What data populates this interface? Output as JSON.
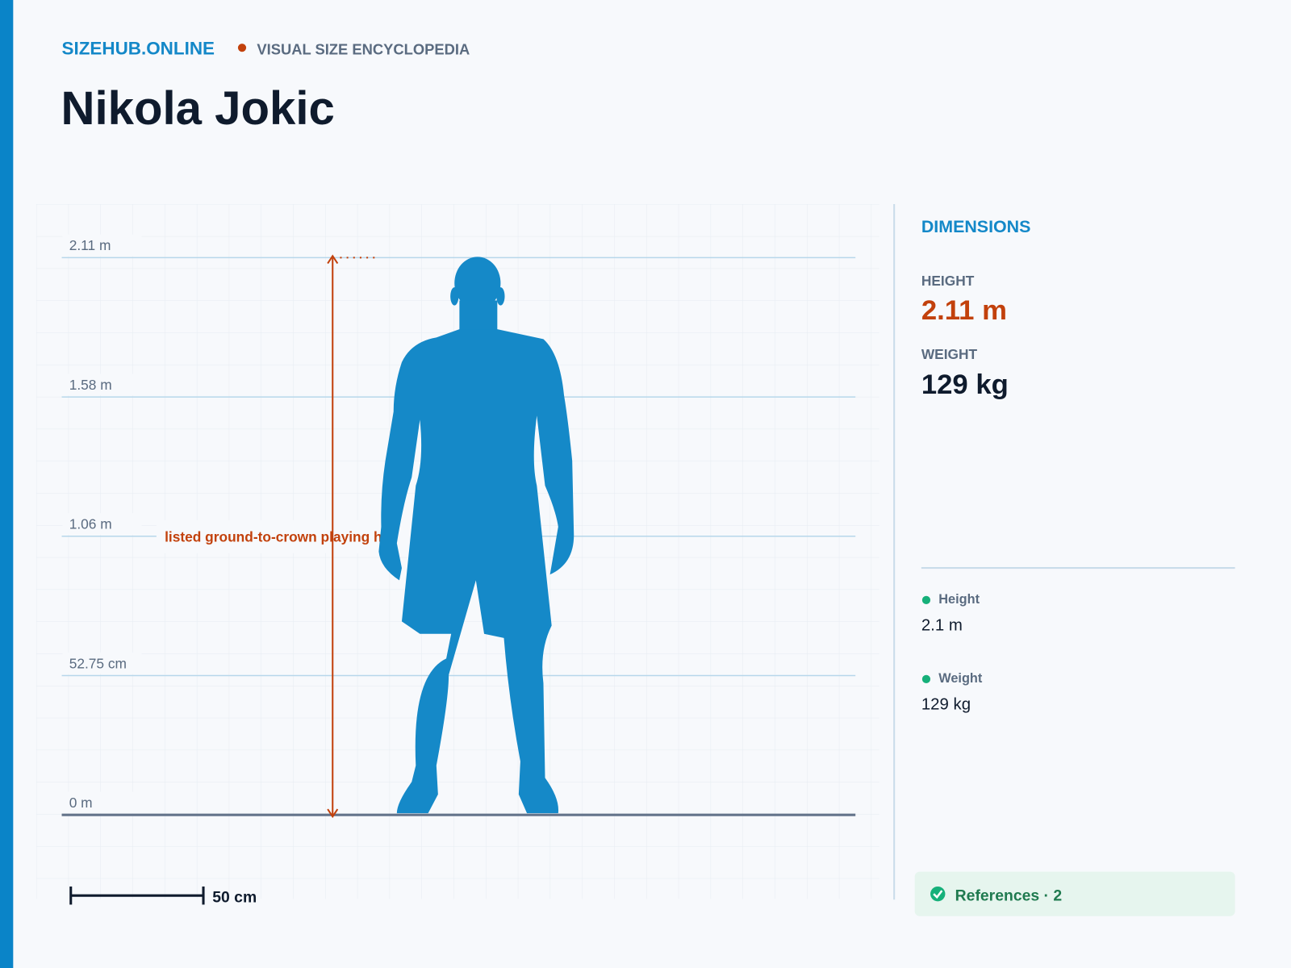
{
  "header": {
    "brand": "SIZEHUB.ONLINE",
    "tagline": "VISUAL SIZE ENCYCLOPEDIA",
    "title": "Nikola Jokic"
  },
  "figure": {
    "ticks": [
      {
        "value": 0,
        "label": "0 m"
      },
      {
        "value": 0.5275,
        "label": "52.75 cm"
      },
      {
        "value": 1.055,
        "label": "1.06 m"
      },
      {
        "value": 1.5825,
        "label": "1.58 m"
      },
      {
        "value": 2.11,
        "label": "2.11 m"
      }
    ],
    "annotation": "listed ground-to-crown playing he",
    "scale_bar": "50 cm"
  },
  "sidebar": {
    "heading": "DIMENSIONS",
    "height": {
      "label": "HEIGHT",
      "value": "2.11 m"
    },
    "weight": {
      "label": "WEIGHT",
      "value": "129 kg"
    },
    "facts": [
      {
        "label": "Height",
        "value": "2.1 m"
      },
      {
        "label": "Weight",
        "value": "129 kg"
      }
    ],
    "references": "References · 2"
  }
}
